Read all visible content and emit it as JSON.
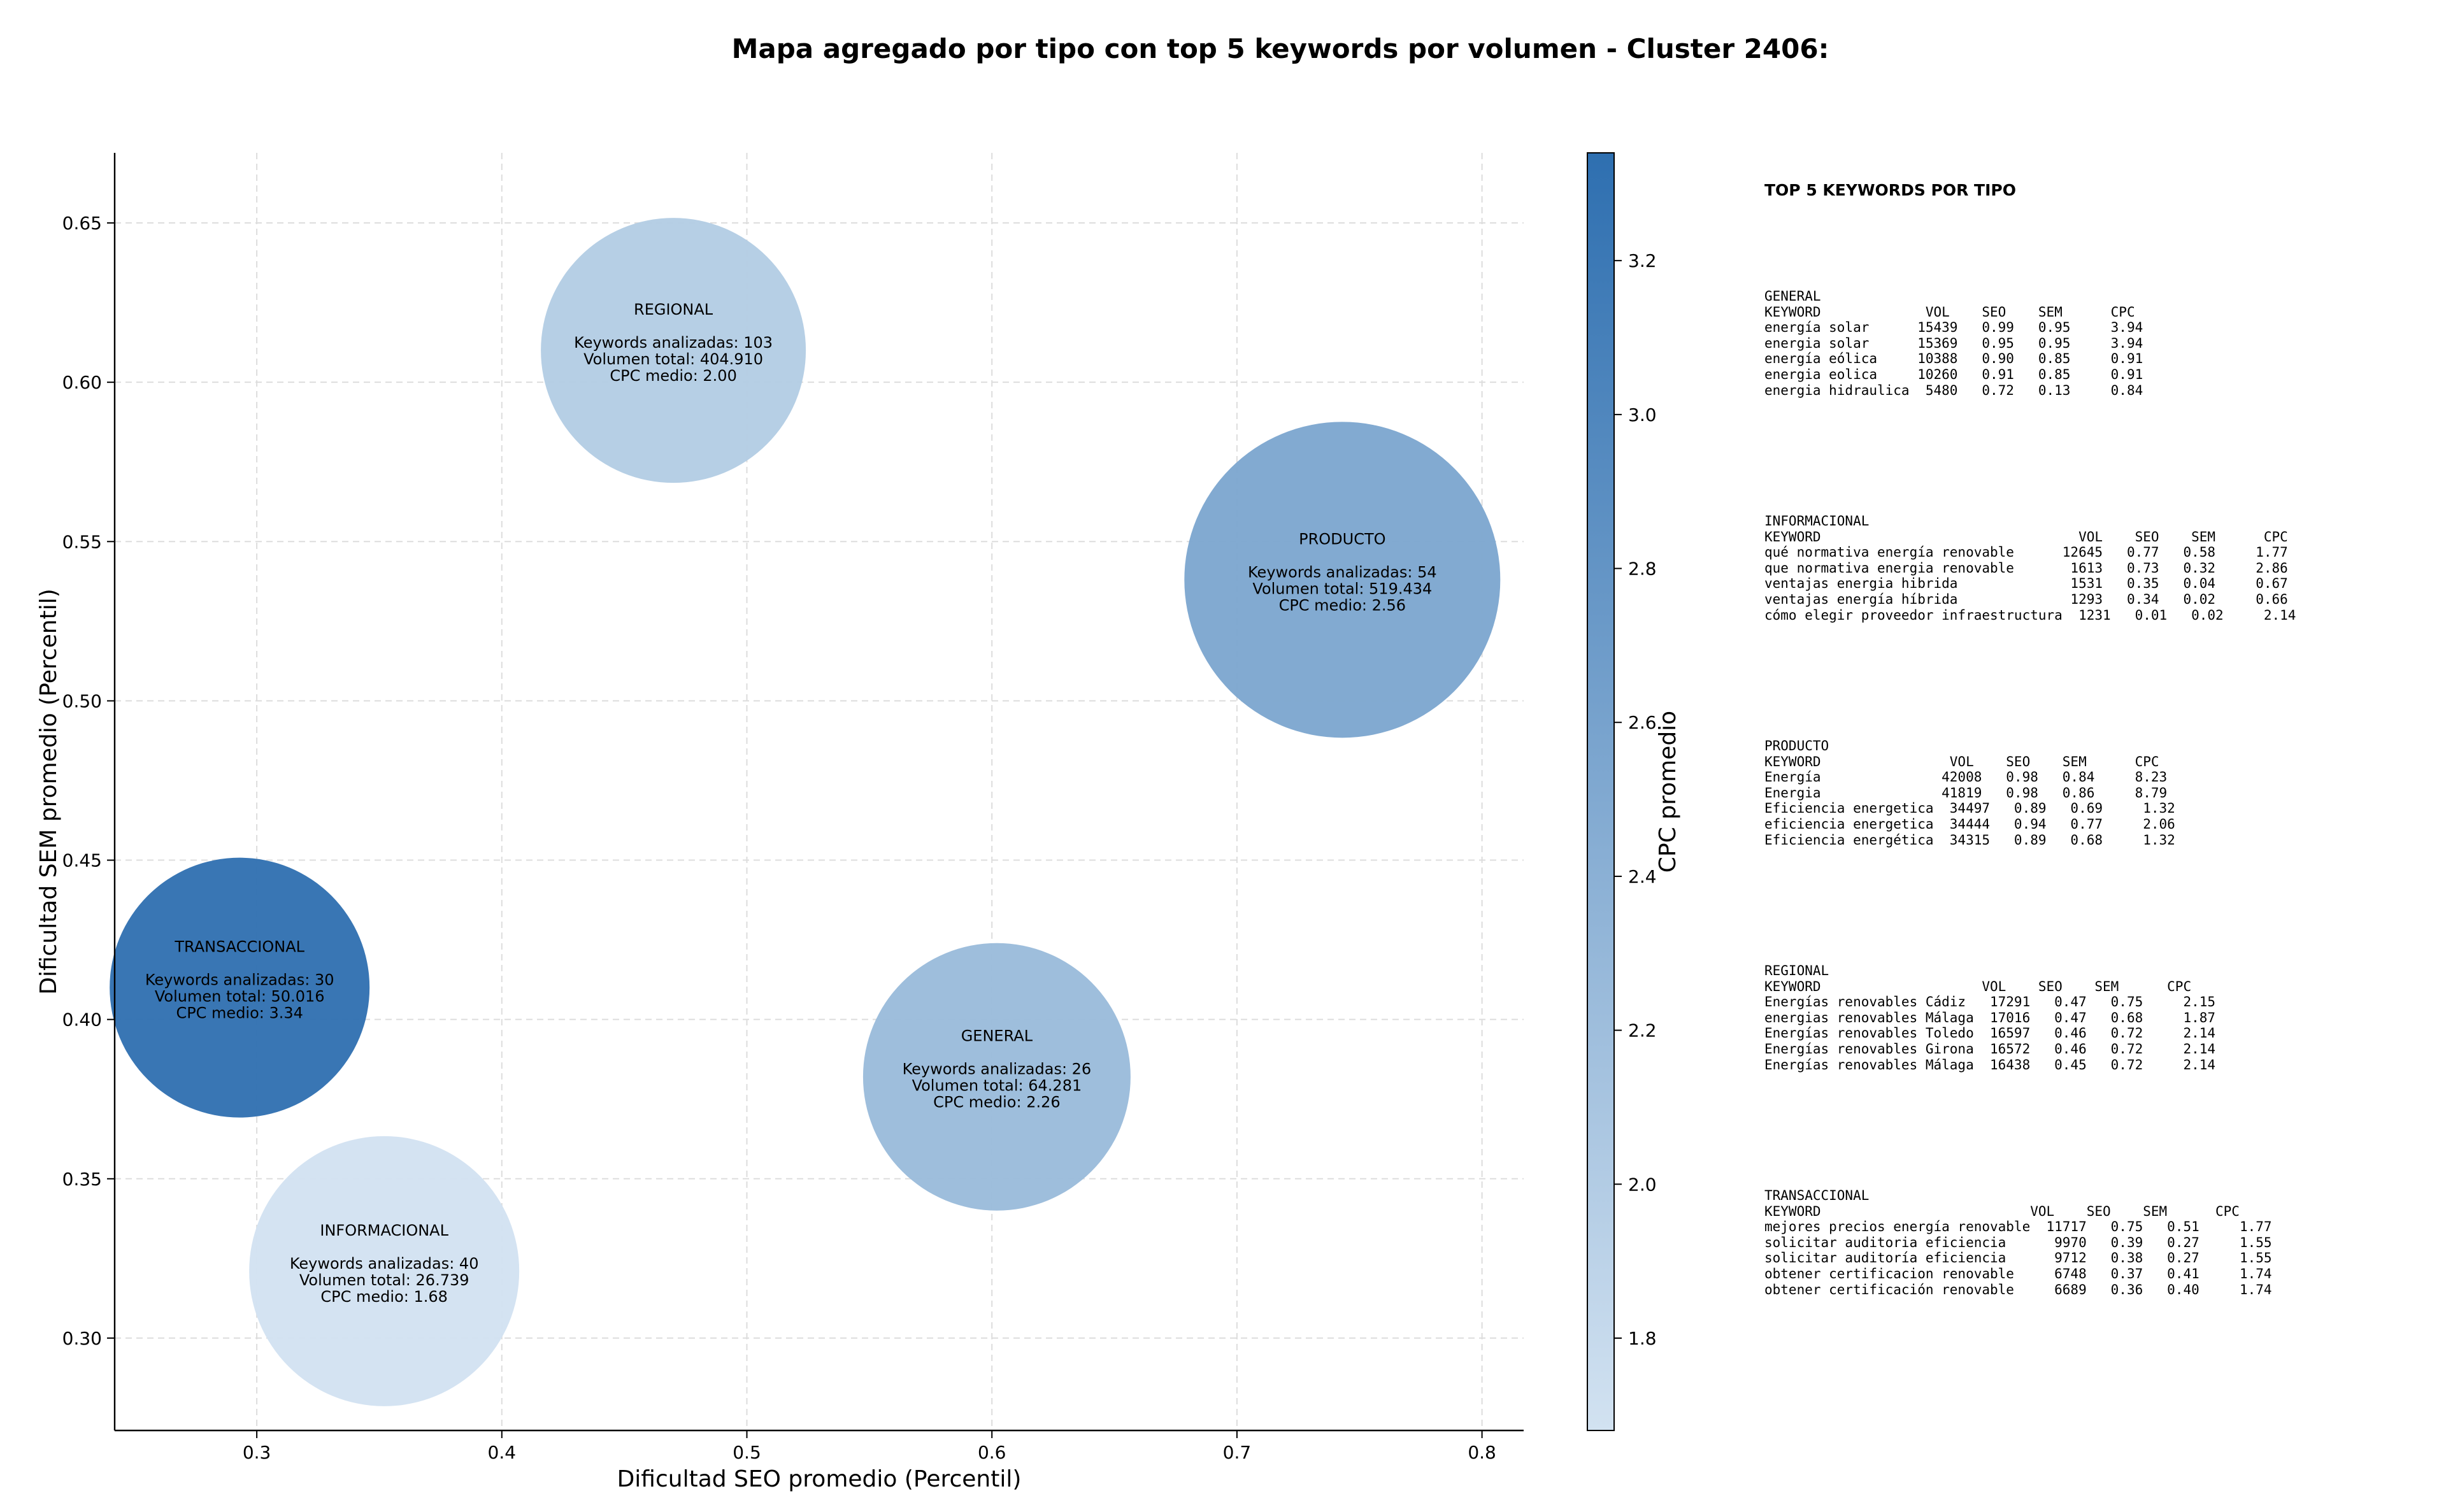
{
  "title": "Mapa agregado por tipo con top 5 keywords por volumen - Cluster 2406:",
  "chart_data": {
    "type": "scatter",
    "subtype": "bubble",
    "xlabel": "Dificultad SEO promedio (Percentil)",
    "ylabel": "Dificultad SEM promedio (Percentil)",
    "xlim": [
      0.242,
      0.817
    ],
    "ylim": [
      0.271,
      0.672
    ],
    "xticks": [
      "0.3",
      "0.4",
      "0.5",
      "0.6",
      "0.7",
      "0.8"
    ],
    "yticks": [
      "0.30",
      "0.35",
      "0.40",
      "0.45",
      "0.50",
      "0.55",
      "0.60",
      "0.65"
    ],
    "grid": true,
    "colorbar": {
      "label": "CPC promedio",
      "min": 1.68,
      "max": 3.34,
      "ticks": [
        "1.8",
        "2.0",
        "2.2",
        "2.4",
        "2.6",
        "2.8",
        "3.0",
        "3.2"
      ],
      "colors": [
        "#d0e0f0",
        "#2e6faf"
      ]
    },
    "points": [
      {
        "label": "REGIONAL",
        "x": 0.47,
        "y": 0.61,
        "keywords": 103,
        "volume": 404910,
        "cpc": 2.0,
        "lines": [
          "REGIONAL",
          "",
          "Keywords analizadas: 103",
          "Volumen total: 404.910",
          "CPC medio: 2.00"
        ]
      },
      {
        "label": "PRODUCTO",
        "x": 0.743,
        "y": 0.538,
        "keywords": 54,
        "volume": 519434,
        "cpc": 2.56,
        "lines": [
          "PRODUCTO",
          "",
          "Keywords analizadas: 54",
          "Volumen total: 519.434",
          "CPC medio: 2.56"
        ]
      },
      {
        "label": "TRANSACCIONAL",
        "x": 0.293,
        "y": 0.41,
        "keywords": 30,
        "volume": 50016,
        "cpc": 3.34,
        "lines": [
          "TRANSACCIONAL",
          "",
          "Keywords analizadas: 30",
          "Volumen total: 50.016",
          "CPC medio: 3.34"
        ]
      },
      {
        "label": "GENERAL",
        "x": 0.602,
        "y": 0.382,
        "keywords": 26,
        "volume": 64281,
        "cpc": 2.26,
        "lines": [
          "GENERAL",
          "",
          "Keywords analizadas: 26",
          "Volumen total: 64.281",
          "CPC medio: 2.26"
        ]
      },
      {
        "label": "INFORMACIONAL",
        "x": 0.352,
        "y": 0.321,
        "keywords": 40,
        "volume": 26739,
        "cpc": 1.68,
        "lines": [
          "INFORMACIONAL",
          "",
          "Keywords analizadas: 40",
          "Volumen total: 26.739",
          "CPC medio: 1.68"
        ]
      }
    ]
  },
  "panel": {
    "title": "TOP 5 KEYWORDS POR TIPO",
    "sections": [
      {
        "name": "GENERAL",
        "header": "KEYWORD             VOL    SEO    SEM      CPC",
        "rows": [
          "energía solar      15439   0.99   0.95     3.94",
          "energia solar      15369   0.95   0.95     3.94",
          "energía eólica     10388   0.90   0.85     0.91",
          "energia eolica     10260   0.91   0.85     0.91",
          "energia hidraulica  5480   0.72   0.13     0.84"
        ]
      },
      {
        "name": "INFORMACIONAL",
        "header": "KEYWORD                                VOL    SEO    SEM      CPC",
        "rows": [
          "qué normativa energía renovable      12645   0.77   0.58     1.77",
          "que normativa energia renovable       1613   0.73   0.32     2.86",
          "ventajas energia hibrida              1531   0.35   0.04     0.67",
          "ventajas energía híbrida              1293   0.34   0.02     0.66",
          "cómo elegir proveedor infraestructura  1231   0.01   0.02     2.14"
        ]
      },
      {
        "name": "PRODUCTO",
        "header": "KEYWORD                VOL    SEO    SEM      CPC",
        "rows": [
          "Energía               42008   0.98   0.84     8.23",
          "Energia               41819   0.98   0.86     8.79",
          "Eficiencia energetica  34497   0.89   0.69     1.32",
          "eficiencia energetica  34444   0.94   0.77     2.06",
          "Eficiencia energética  34315   0.89   0.68     1.32"
        ]
      },
      {
        "name": "REGIONAL",
        "header": "KEYWORD                    VOL    SEO    SEM      CPC",
        "rows": [
          "Energías renovables Cádiz   17291   0.47   0.75     2.15",
          "energias renovables Málaga  17016   0.47   0.68     1.87",
          "Energías renovables Toledo  16597   0.46   0.72     2.14",
          "Energías renovables Girona  16572   0.46   0.72     2.14",
          "Energías renovables Málaga  16438   0.45   0.72     2.14"
        ]
      },
      {
        "name": "TRANSACCIONAL",
        "header": "KEYWORD                          VOL    SEO    SEM      CPC",
        "rows": [
          "mejores precios energía renovable  11717   0.75   0.51     1.77",
          "solicitar auditoria eficiencia      9970   0.39   0.27     1.55",
          "solicitar auditoría eficiencia      9712   0.38   0.27     1.55",
          "obtener certificacion renovable     6748   0.37   0.41     1.74",
          "obtener certificación renovable     6689   0.36   0.40     1.74"
        ]
      }
    ]
  }
}
